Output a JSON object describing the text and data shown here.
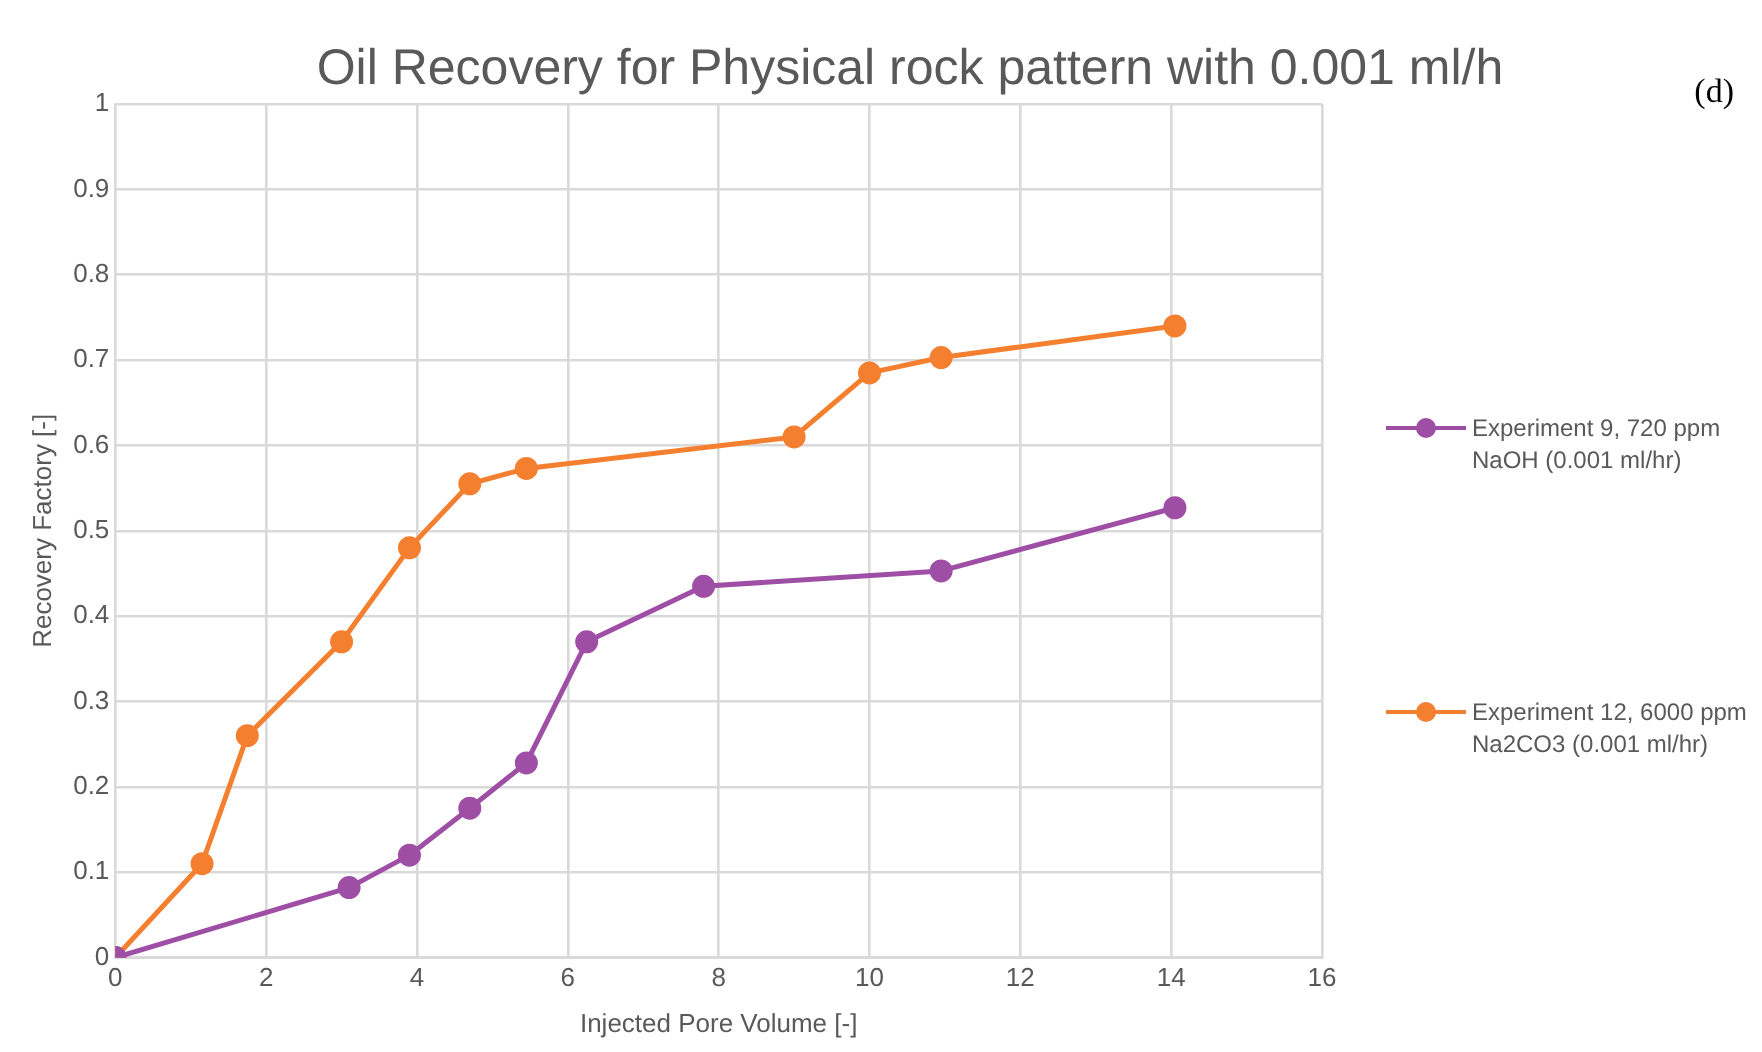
{
  "chart_data": {
    "type": "line",
    "title": "Oil Recovery for Physical rock pattern with 0.001 ml/h",
    "xlabel": "Injected Pore Volume [-]",
    "ylabel": "Recovery Factory [-]",
    "annotations": [
      "(d)"
    ],
    "series": [
      {
        "name": "Experiment 9, 720 ppm NaOH (0.001 ml/hr)",
        "color": "#9e4fa5",
        "x": [
          0,
          3.1,
          3.9,
          4.7,
          5.45,
          6.25,
          7.8,
          10.95,
          14.05
        ],
        "values": [
          0,
          0.082,
          0.12,
          0.175,
          0.228,
          0.37,
          0.435,
          0.453,
          0.527
        ]
      },
      {
        "name": "Experiment 12, 6000 ppm Na2CO3 (0.001 ml/hr)",
        "color": "#f47f2f",
        "x": [
          0,
          1.15,
          1.75,
          3.0,
          3.9,
          4.7,
          5.45,
          9.0,
          10.0,
          10.95,
          14.05
        ],
        "values": [
          0,
          0.11,
          0.26,
          0.37,
          0.48,
          0.555,
          0.573,
          0.61,
          0.685,
          0.703,
          0.74
        ]
      }
    ],
    "xlim": [
      0,
      16
    ],
    "xticks": [
      0,
      2,
      4,
      6,
      8,
      10,
      12,
      14,
      16
    ],
    "ylim": [
      0,
      1
    ],
    "yticks": [
      0,
      0.1,
      0.2,
      0.3,
      0.4,
      0.5,
      0.6,
      0.7,
      0.8,
      0.9,
      1
    ],
    "grid": true,
    "legend": "right",
    "marker": "circle",
    "line_style": "solid"
  }
}
